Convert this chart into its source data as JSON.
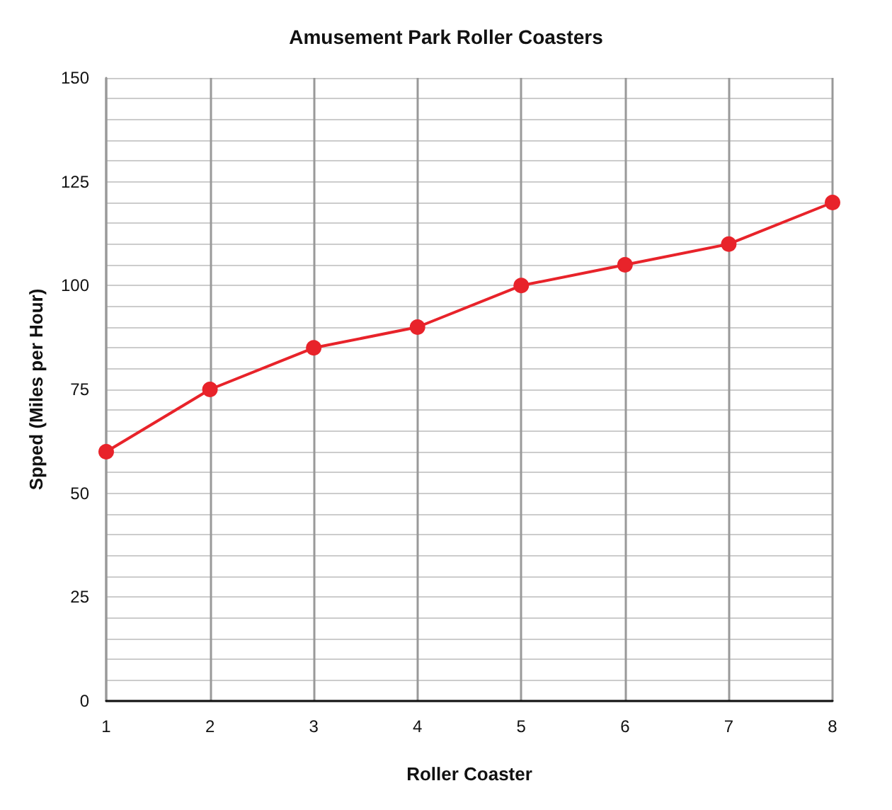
{
  "chart_data": {
    "type": "line",
    "title": "Amusement Park Roller Coasters",
    "xlabel": "Roller Coaster",
    "ylabel": "Spped (Miles per Hour)",
    "x": [
      1,
      2,
      3,
      4,
      5,
      6,
      7,
      8
    ],
    "series": [
      {
        "color": "#e8232a",
        "values": [
          60,
          75,
          85,
          90,
          100,
          105,
          110,
          120
        ]
      }
    ],
    "xlim": [
      1,
      8
    ],
    "xticks": [
      1,
      2,
      3,
      4,
      5,
      6,
      7,
      8
    ],
    "ylim": [
      0,
      150
    ],
    "yticks": [
      0,
      {
        "value": 5,
        "label": null
      },
      {
        "value": 10,
        "label": null
      },
      {
        "value": 15,
        "label": null
      },
      {
        "value": 20,
        "label": null
      },
      25,
      {
        "value": 30,
        "label": null
      },
      {
        "value": 35,
        "label": null
      },
      {
        "value": 40,
        "label": null
      },
      {
        "value": 45,
        "label": null
      },
      50,
      {
        "value": 55,
        "label": null
      },
      {
        "value": 60,
        "label": null
      },
      {
        "value": 65,
        "label": null
      },
      {
        "value": 70,
        "label": null
      },
      75,
      {
        "value": 80,
        "label": null
      },
      {
        "value": 85,
        "label": null
      },
      {
        "value": 90,
        "label": null
      },
      {
        "value": 95,
        "label": null
      },
      100,
      {
        "value": 105,
        "label": null
      },
      {
        "value": 110,
        "label": null
      },
      {
        "value": 115,
        "label": null
      },
      {
        "value": 120,
        "label": null
      },
      125,
      {
        "value": 130,
        "label": null
      },
      {
        "value": 135,
        "label": null
      },
      {
        "value": 140,
        "label": null
      },
      {
        "value": 145,
        "label": null
      },
      150
    ],
    "grid": true,
    "marker": "circle",
    "line_style": "solid"
  }
}
